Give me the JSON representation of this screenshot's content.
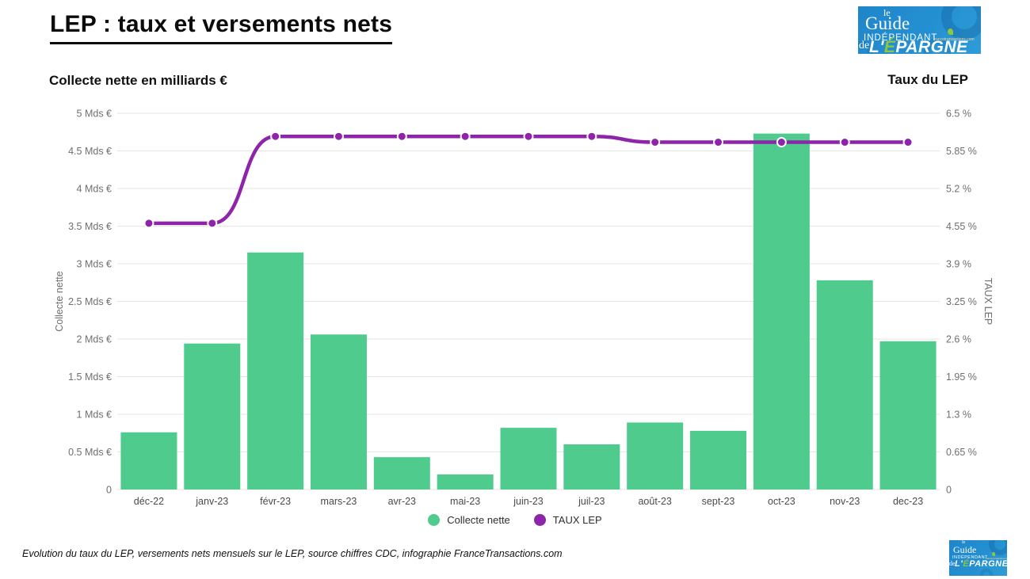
{
  "page": {
    "title": "LEP : taux et versements nets"
  },
  "header": {
    "left_subtitle": "Collecte nette en milliards €",
    "right_subtitle": "Taux du LEP"
  },
  "logo": {
    "le": "le",
    "guide": "Guide",
    "independant": "INDÉPENDANT",
    "site": "francetransactions.com",
    "de": "de",
    "epargne_prefix": "L'",
    "epargne_accent": "É",
    "epargne_rest": "PARGNE"
  },
  "legend": [
    {
      "label": "Collecte nette",
      "color": "#4FCB8D"
    },
    {
      "label": "TAUX LEP",
      "color": "#8E24AA"
    }
  ],
  "footer": {
    "caption": "Evolution du taux du LEP, versements nets mensuels sur le LEP, source chiffres CDC, infographie FranceTransactions.com"
  },
  "colors": {
    "bar_green": "#4FCB8D",
    "line_purple": "#8E24AA",
    "gridline": "#E5E5E5",
    "tick_label": "#6F6F6F",
    "month_label": "#4A4A4A",
    "logo_blue": "#2490D1",
    "logo_green": "#8DC63F"
  },
  "chart_data": {
    "type": "combo-bar-line",
    "title": "LEP : taux et versements nets",
    "categories": [
      "déc-22",
      "janv-23",
      "févr-23",
      "mars-23",
      "avr-23",
      "mai-23",
      "juin-23",
      "juil-23",
      "août-23",
      "sept-23",
      "oct-23",
      "nov-23",
      "dec-23"
    ],
    "series": [
      {
        "name": "Collecte nette",
        "type": "bar",
        "axis": "left",
        "color": "#4FCB8D",
        "values": [
          0.76,
          1.94,
          3.15,
          2.06,
          0.43,
          0.2,
          0.82,
          0.6,
          0.89,
          0.78,
          4.73,
          2.78,
          1.97
        ]
      },
      {
        "name": "TAUX LEP",
        "type": "line",
        "axis": "right",
        "color": "#8E24AA",
        "values": [
          4.6,
          4.6,
          6.1,
          6.1,
          6.1,
          6.1,
          6.1,
          6.1,
          6.0,
          6.0,
          6.0,
          6.0,
          6.0
        ]
      }
    ],
    "left_axis": {
      "title": "Collecte nette",
      "min": 0,
      "max": 5,
      "step": 0.5,
      "tick_labels": [
        "0",
        "0.5 Mds €",
        "1 Mds €",
        "1.5 Mds €",
        "2 Mds €",
        "2.5 Mds €",
        "3 Mds €",
        "3.5 Mds €",
        "4 Mds €",
        "4.5 Mds €",
        "5 Mds €"
      ]
    },
    "right_axis": {
      "title": "TAUX LEP",
      "min": 0,
      "max": 6.5,
      "step": 0.65,
      "tick_labels": [
        "0",
        "0.65 %",
        "1.3 %",
        "1.95 %",
        "2.6 %",
        "3.25 %",
        "3.9 %",
        "4.55 %",
        "5.2 %",
        "5.85 %",
        "6.5 %"
      ]
    },
    "grid": true,
    "legend_position": "bottom"
  }
}
